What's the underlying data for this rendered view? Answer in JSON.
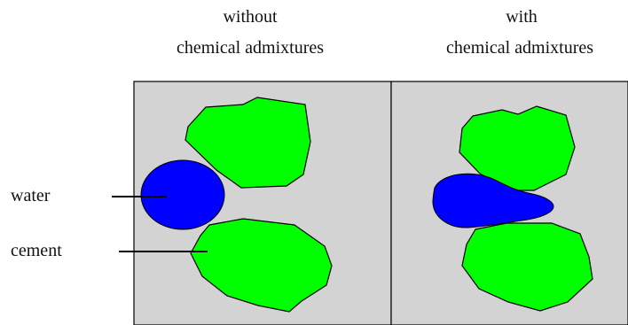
{
  "headers": {
    "left": {
      "line1": "without",
      "line2": "chemical admixtures"
    },
    "right": {
      "line1": "with",
      "line2": "chemical admixtures"
    }
  },
  "labels": {
    "water": "water",
    "cement": "cement"
  },
  "colors": {
    "panel_fill": "#d3d3d3",
    "cement": "#00ff00",
    "water": "#0000ff",
    "outline": "#000000"
  }
}
